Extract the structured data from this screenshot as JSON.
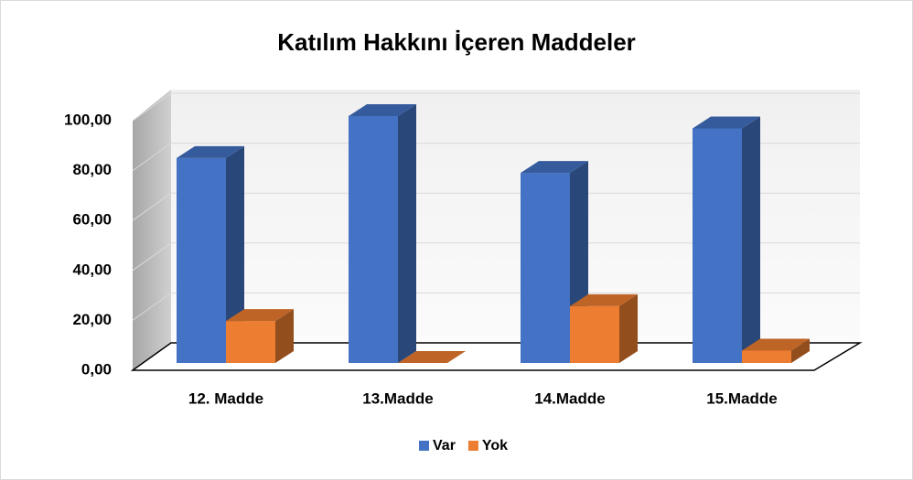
{
  "chart_data": {
    "type": "bar3d",
    "title": "Katılım Hakkını İçeren Maddeler",
    "categories": [
      "12. Madde",
      "13.Madde",
      "14.Madde",
      "15.Madde"
    ],
    "series": [
      {
        "name": "Var",
        "color": "#4472c4",
        "values": [
          83,
          100,
          77,
          95
        ]
      },
      {
        "name": "Yok",
        "color": "#ed7d31",
        "values": [
          17,
          0,
          23,
          5
        ]
      }
    ],
    "ylim": [
      0,
      100
    ],
    "yticks": [
      {
        "value": 0,
        "label": "0,00"
      },
      {
        "value": 20,
        "label": "20,00"
      },
      {
        "value": 40,
        "label": "40,00"
      },
      {
        "value": 60,
        "label": "60,00"
      },
      {
        "value": 80,
        "label": "80,00"
      },
      {
        "value": 100,
        "label": "100,00"
      }
    ],
    "grid": true,
    "legend": "bottom"
  }
}
